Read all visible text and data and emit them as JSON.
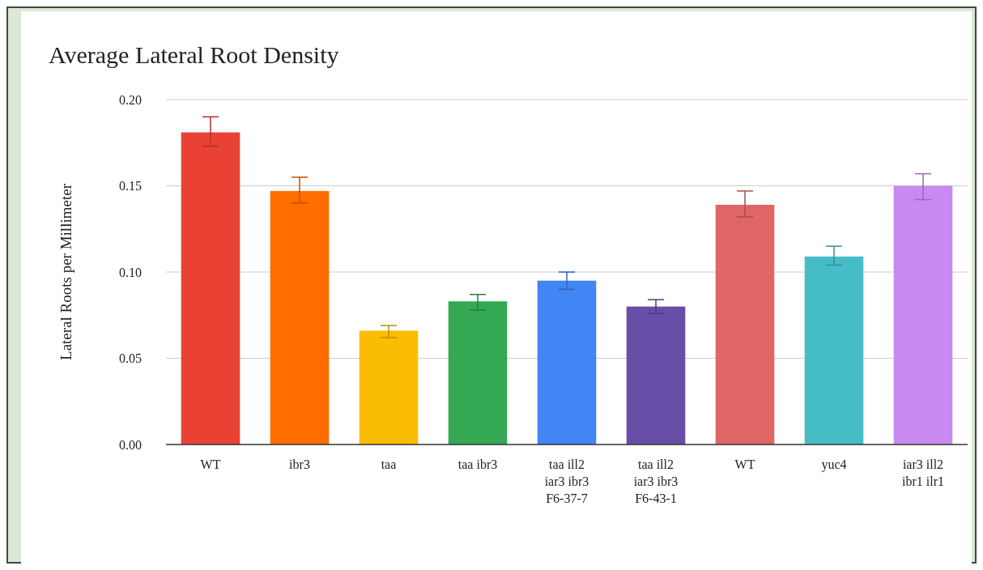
{
  "chart_data": {
    "type": "bar",
    "title": "Average Lateral Root Density",
    "ylabel": "Lateral Roots per Millimeter",
    "categories": [
      "WT",
      "ibr3",
      "taa",
      "taa ibr3",
      "taa ill2 iar3 ibr3 F6-37-7",
      "taa ill2 iar3 ibr3 F6-43-1",
      "WT",
      "yuc4",
      "iar3 ill2 ibr1 ilr1"
    ],
    "values": [
      0.181,
      0.147,
      0.066,
      0.083,
      0.095,
      0.08,
      0.139,
      0.109,
      0.15
    ],
    "colors": [
      "#e94235",
      "#ff6d01",
      "#fbbc04",
      "#34a853",
      "#4285f4",
      "#674ea7",
      "#e06666",
      "#46bdc6",
      "#c88af0"
    ],
    "errors": [
      [
        0.173,
        0.19
      ],
      [
        0.14,
        0.155
      ],
      [
        0.062,
        0.069
      ],
      [
        0.078,
        0.087
      ],
      [
        0.09,
        0.1
      ],
      [
        0.076,
        0.084
      ],
      [
        0.132,
        0.147
      ],
      [
        0.104,
        0.115
      ],
      [
        0.142,
        0.157
      ]
    ],
    "ylim": [
      0,
      0.2
    ],
    "yticks": [
      {
        "value": 0,
        "label": "0.00"
      },
      {
        "value": 0.05,
        "label": "0.05"
      },
      {
        "value": 0.1,
        "label": "0.10"
      },
      {
        "value": 0.15,
        "label": "0.15"
      },
      {
        "value": 0.2,
        "label": "0.20"
      }
    ],
    "grid": "y"
  }
}
